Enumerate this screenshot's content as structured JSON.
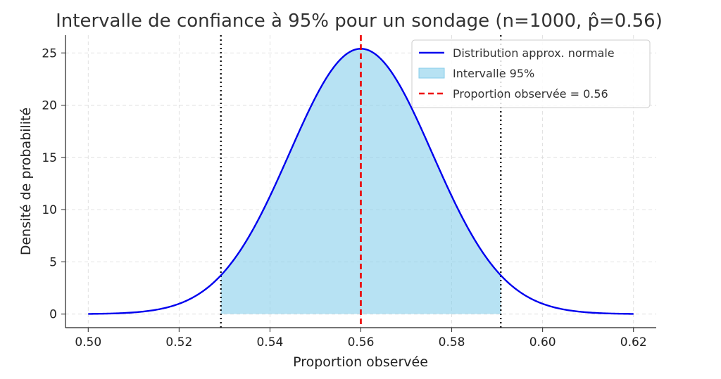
{
  "chart_data": {
    "type": "line",
    "title": "Intervalle de confiance à 95% pour un sondage (n=1000, p̂=0.56)",
    "xlabel": "Proportion observée",
    "ylabel": "Densité de probabilité",
    "xlim": [
      0.495,
      0.625
    ],
    "ylim": [
      -1.3,
      26.7
    ],
    "x_ticks": [
      0.5,
      0.52,
      0.54,
      0.56,
      0.58,
      0.6,
      0.62
    ],
    "x_tick_labels": [
      "0.50",
      "0.52",
      "0.54",
      "0.56",
      "0.58",
      "0.60",
      "0.62"
    ],
    "y_ticks": [
      0,
      5,
      10,
      15,
      20,
      25
    ],
    "y_tick_labels": [
      "0",
      "5",
      "10",
      "15",
      "20",
      "25"
    ],
    "grid": true,
    "legend_position": "top-right",
    "distribution": {
      "mean": 0.56,
      "sd": 0.0157,
      "x_range": [
        0.5,
        0.62
      ],
      "peak_density": 25.4
    },
    "interval": {
      "lower": 0.5292,
      "upper": 0.5908
    },
    "observed": 0.56,
    "series": [
      {
        "name": "Distribution approx. normale",
        "kind": "curve",
        "color": "#0000ee"
      },
      {
        "name": "Intervalle 95%",
        "kind": "fill",
        "color": "#87ceeb"
      },
      {
        "name": "Proportion observée = 0.56",
        "kind": "vline",
        "color": "#ee0000"
      }
    ],
    "bound_line_color": "#000000"
  }
}
